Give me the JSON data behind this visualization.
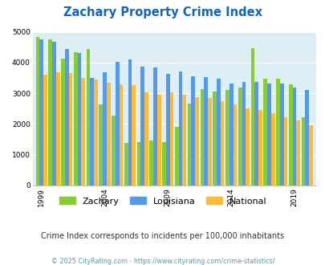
{
  "title": "Zachary Property Crime Index",
  "years": [
    1999,
    2000,
    2001,
    2002,
    2003,
    2004,
    2005,
    2006,
    2007,
    2008,
    2009,
    2010,
    2011,
    2012,
    2013,
    2014,
    2015,
    2016,
    2017,
    2018,
    2019,
    2020
  ],
  "zachary": [
    4820,
    4750,
    4120,
    4330,
    4430,
    2640,
    2260,
    1380,
    1400,
    1470,
    1400,
    1910,
    2670,
    3130,
    3050,
    3110,
    3200,
    4460,
    3480,
    3480,
    3280,
    2210
  ],
  "louisiana": [
    4760,
    4670,
    4440,
    4310,
    3500,
    3680,
    4020,
    4100,
    3860,
    3830,
    3640,
    3710,
    3540,
    3530,
    3480,
    3330,
    3360,
    3370,
    3320,
    3320,
    3180,
    3100
  ],
  "national": [
    3600,
    3680,
    3660,
    3490,
    3450,
    3340,
    3290,
    3260,
    3020,
    2960,
    3040,
    2960,
    2880,
    2860,
    2730,
    2640,
    2500,
    2460,
    2360,
    2230,
    2120,
    1960
  ],
  "zachary_color": "#88cc33",
  "louisiana_color": "#5599ee",
  "national_color": "#ffbb33",
  "plot_bg_color": "#ddeef5",
  "ylim": [
    0,
    5000
  ],
  "yticks": [
    0,
    1000,
    2000,
    3000,
    4000,
    5000
  ],
  "xlabel_ticks": [
    1999,
    2004,
    2009,
    2014,
    2019
  ],
  "subtitle": "Crime Index corresponds to incidents per 100,000 inhabitants",
  "footer": "© 2025 CityRating.com - https://www.cityrating.com/crime-statistics/",
  "title_color": "#1166bb",
  "subtitle_color": "#333333",
  "footer_color": "#5599bb"
}
